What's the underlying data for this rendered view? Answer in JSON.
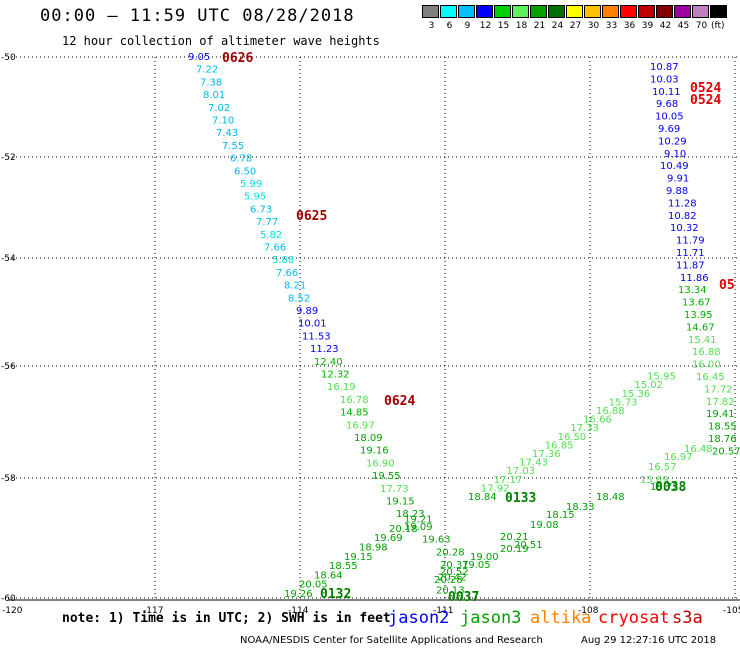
{
  "header": {
    "title": "00:00 – 11:59 UTC 08/28/2018",
    "subtitle": "12 hour collection of altimeter wave heights"
  },
  "legend": {
    "colors": [
      "#808080",
      "#00ffff",
      "#00c0ff",
      "#0000ff",
      "#00d000",
      "#60f060",
      "#00a000",
      "#007000",
      "#ffff00",
      "#ffc000",
      "#ff8000",
      "#ff0000",
      "#c00000",
      "#800000",
      "#a000a0",
      "#c080c0",
      "#000000"
    ],
    "labels": [
      "3",
      "6",
      "9",
      "12",
      "15",
      "18",
      "21",
      "24",
      "27",
      "30",
      "33",
      "36",
      "39",
      "42",
      "45",
      "70"
    ],
    "unit": "(ft)"
  },
  "axes": {
    "y_labels": [
      "-50",
      "-52",
      "-54",
      "-56",
      "-58",
      "-60"
    ],
    "x_labels": [
      "-120",
      "-117",
      "-114",
      "-111",
      "-108",
      "-105"
    ]
  },
  "chart_data": {
    "type": "scatter",
    "title": "",
    "xlim": [
      -120,
      -105
    ],
    "ylim": [
      -60,
      -50
    ],
    "passes": [
      {
        "track_label": "0626",
        "values": [
          "9.05",
          "7.22",
          "7.38",
          "8.01",
          "7.02",
          "7.10",
          "7.43",
          "7.55",
          "6.78",
          "6.50",
          "5.99",
          "5.95",
          "6.73",
          "7.77",
          "5.82",
          "7.66",
          "5.88",
          "7.66",
          "8.21",
          "8.52",
          "9.89",
          "10.01",
          "11.53",
          "11.23",
          "12.40",
          "12.32",
          "16.19",
          "16.78",
          "14.85",
          "16.97",
          "18.09",
          "19.16",
          "16.90",
          "19.55",
          "17.73",
          "19.15",
          "18.23",
          "19.09",
          "19.63",
          "20.28",
          "20.37",
          "20.42",
          "20.13"
        ]
      },
      {
        "track_label": "0625",
        "values": []
      },
      {
        "track_label": "0624",
        "values": []
      },
      {
        "track_label": "0524",
        "values": [
          "10.87",
          "10.03",
          "10.11",
          "9.68",
          "10.05",
          "9.69",
          "10.29",
          "9.10",
          "10.49",
          "9.91",
          "9.88",
          "11.28",
          "10.82",
          "10.32",
          "11.79",
          "11.71",
          "11.87",
          "11.86",
          "13.34",
          "13.67",
          "13.95",
          "14.67",
          "15.41",
          "16.88",
          "16.00",
          "16.45",
          "17.72",
          "17.82",
          "19.41",
          "18.55",
          "18.76",
          "20.57"
        ]
      },
      {
        "track_label": "0133",
        "values": [
          "18.84",
          "17.92",
          "17.17",
          "17.03",
          "17.43",
          "17.36",
          "16.85",
          "16.50",
          "17.33",
          "16.66",
          "16.88",
          "15.73",
          "15.36",
          "15.02",
          "15.95"
        ]
      },
      {
        "track_label": "0132",
        "values": [
          "19.26",
          "20.05",
          "18.64",
          "18.55",
          "19.15",
          "18.98",
          "19.69",
          "20.18",
          "19.21"
        ]
      },
      {
        "track_label": "0038",
        "values": [
          "15.69",
          "16.57",
          "16.97",
          "16.48",
          "18.72",
          "18.48",
          "18.33",
          "18.15",
          "19.08",
          "20.21",
          "20.51",
          "20.19",
          "19.00",
          "19.05",
          "20.52",
          "20.28"
        ]
      },
      {
        "track_label": "0037",
        "values": []
      }
    ]
  },
  "note": "note: 1) Time is in UTC; 2) SWH is in feet",
  "satellites": [
    {
      "name": "jason2",
      "color": "#0000ff"
    },
    {
      "name": "jason3",
      "color": "#00a000"
    },
    {
      "name": "altika",
      "color": "#ff8000"
    },
    {
      "name": "cryosat",
      "color": "#ff0000"
    },
    {
      "name": "s3a",
      "color": "#c00000"
    }
  ],
  "footer": {
    "credit": "NOAA/NESDIS Center for Satellite Applications and Research",
    "generated": "Aug 29 12:27:16 UTC 2018"
  },
  "pass_labels": {
    "p0626": "0626",
    "p0625": "0625",
    "p0624": "0624",
    "p0524a": "0524",
    "p0524b": "0524",
    "p0133": "0133",
    "p0132": "0132",
    "p0038": "0038",
    "p0037": "0037",
    "p05x": "05"
  }
}
